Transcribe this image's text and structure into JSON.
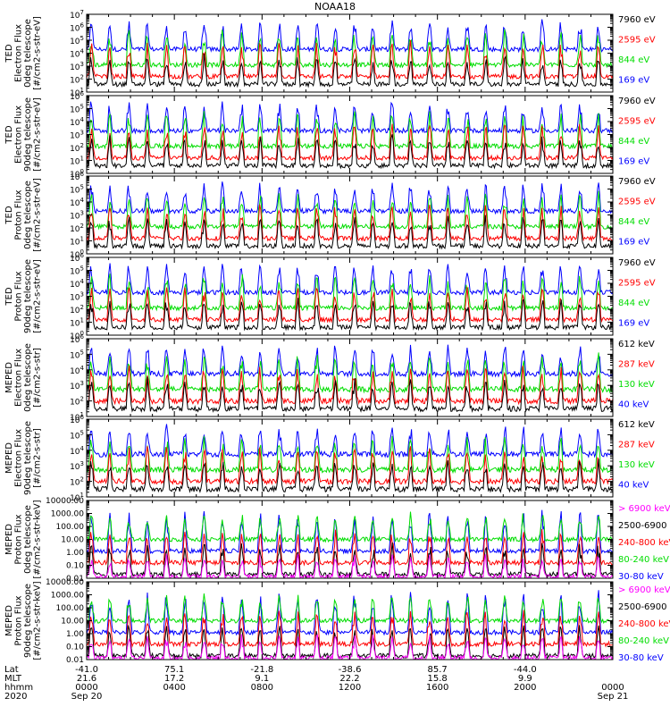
{
  "title": "NOAA18",
  "colors": {
    "black": "#000000",
    "red": "#ff0000",
    "green": "#00dd00",
    "blue": "#0000ff",
    "magenta": "#ff00ff"
  },
  "chart_data": [
    {
      "type": "line",
      "ylabel": [
        "TED",
        "Electron Flux",
        "0deg telescope",
        "[#/cm2-s-str-eV]"
      ],
      "yscale": "log",
      "ylim": [
        10,
        10000000
      ],
      "ytick_labels": [
        "10^1",
        "10^2",
        "10^3",
        "10^4",
        "10^5",
        "10^6",
        "10^7"
      ],
      "legend": [
        {
          "label": "7960 eV",
          "color": "black"
        },
        {
          "label": "2595 eV",
          "color": "red"
        },
        {
          "label": "844 eV",
          "color": "green"
        },
        {
          "label": "169 eV",
          "color": "blue"
        }
      ]
    },
    {
      "type": "line",
      "ylabel": [
        "TED",
        "Electron Flux",
        "90deg telescope",
        "[#/cm2-s-str-eV]"
      ],
      "yscale": "log",
      "ylim": [
        1,
        1000000
      ],
      "ytick_labels": [
        "10^0",
        "10^1",
        "10^2",
        "10^3",
        "10^4",
        "10^5",
        "10^6"
      ],
      "legend": [
        {
          "label": "7960 eV",
          "color": "black"
        },
        {
          "label": "2595 eV",
          "color": "red"
        },
        {
          "label": "844 eV",
          "color": "green"
        },
        {
          "label": "169 eV",
          "color": "blue"
        }
      ]
    },
    {
      "type": "line",
      "ylabel": [
        "TED",
        "Proton Flux",
        "0deg telescope",
        "[#/cm2-s-str-eV]"
      ],
      "yscale": "log",
      "ylim": [
        1,
        1000000
      ],
      "ytick_labels": [
        "10^0",
        "10^1",
        "10^2",
        "10^3",
        "10^4",
        "10^5",
        "10^6"
      ],
      "legend": [
        {
          "label": "7960 eV",
          "color": "black"
        },
        {
          "label": "2595 eV",
          "color": "red"
        },
        {
          "label": "844 eV",
          "color": "green"
        },
        {
          "label": "169 eV",
          "color": "blue"
        }
      ]
    },
    {
      "type": "line",
      "ylabel": [
        "TED",
        "Proton Flux",
        "90deg telescope",
        "[#/cm2-s-str-eV]"
      ],
      "yscale": "log",
      "ylim": [
        1,
        1000000
      ],
      "ytick_labels": [
        "10^0",
        "10^1",
        "10^2",
        "10^3",
        "10^4",
        "10^5",
        "10^6"
      ],
      "legend": [
        {
          "label": "7960 eV",
          "color": "black"
        },
        {
          "label": "2595 eV",
          "color": "red"
        },
        {
          "label": "844 eV",
          "color": "green"
        },
        {
          "label": "169 eV",
          "color": "blue"
        }
      ]
    },
    {
      "type": "line",
      "ylabel": [
        "MEPED",
        "Electron Flux",
        "0deg telescope",
        "[#/cm2-s-str]"
      ],
      "yscale": "log",
      "ylim": [
        10,
        1000000
      ],
      "ytick_labels": [
        "10^1",
        "10^2",
        "10^3",
        "10^4",
        "10^5",
        "10^6"
      ],
      "legend": [
        {
          "label": "612 keV",
          "color": "black"
        },
        {
          "label": "287 keV",
          "color": "red"
        },
        {
          "label": "130 keV",
          "color": "green"
        },
        {
          "label": "40 keV",
          "color": "blue"
        }
      ]
    },
    {
      "type": "line",
      "ylabel": [
        "MEPED",
        "Electron Flux",
        "90deg telescope",
        "[#/cm2-s-str]"
      ],
      "yscale": "log",
      "ylim": [
        10,
        1000000
      ],
      "ytick_labels": [
        "10^1",
        "10^2",
        "10^3",
        "10^4",
        "10^5",
        "10^6"
      ],
      "legend": [
        {
          "label": "612 keV",
          "color": "black"
        },
        {
          "label": "287 keV",
          "color": "red"
        },
        {
          "label": "130 keV",
          "color": "green"
        },
        {
          "label": "40 keV",
          "color": "blue"
        }
      ]
    },
    {
      "type": "line",
      "ylabel": [
        "MEPED",
        "Proton Flux",
        "0deg telescope",
        "[#/cm2-s-str-keV]"
      ],
      "yscale": "log",
      "ylim": [
        0.01,
        10000
      ],
      "ytick_labels": [
        "10000.00",
        "1000.00",
        "100.00",
        "10.00",
        "1.00",
        "0.10",
        "0.01"
      ],
      "legend": [
        {
          "label": "> 6900 keV",
          "color": "magenta"
        },
        {
          "label": "2500-6900",
          "color": "black"
        },
        {
          "label": "240-800 keV",
          "color": "red"
        },
        {
          "label": "80-240 keV",
          "color": "green"
        },
        {
          "label": "30-80 keV",
          "color": "blue"
        }
      ]
    },
    {
      "type": "line",
      "ylabel": [
        "MEPED",
        "Proton Flux",
        "90deg telescope",
        "[#/cm2-s-str-keV]"
      ],
      "yscale": "log",
      "ylim": [
        0.01,
        10000
      ],
      "ytick_labels": [
        "10000.00",
        "1000.00",
        "100.00",
        "10.00",
        "1.00",
        "0.10",
        "0.01"
      ],
      "legend": [
        {
          "label": "> 6900 keV",
          "color": "magenta"
        },
        {
          "label": "2500-6900",
          "color": "black"
        },
        {
          "label": "240-800 keV",
          "color": "red"
        },
        {
          "label": "80-240 keV",
          "color": "green"
        },
        {
          "label": "30-80 keV",
          "color": "blue"
        }
      ]
    }
  ],
  "x_axis": {
    "row_labels": [
      "Lat",
      "MLT",
      "hhmm",
      "2020"
    ],
    "ticks": [
      {
        "lat": "-41.0",
        "mlt": "21.6",
        "hhmm": "0000",
        "date": "Sep 20"
      },
      {
        "lat": "75.1",
        "mlt": "17.2",
        "hhmm": "0400",
        "date": ""
      },
      {
        "lat": "-21.8",
        "mlt": "9.1",
        "hhmm": "0800",
        "date": ""
      },
      {
        "lat": "-38.6",
        "mlt": "22.2",
        "hhmm": "1200",
        "date": ""
      },
      {
        "lat": "85.7",
        "mlt": "15.8",
        "hhmm": "1600",
        "date": ""
      },
      {
        "lat": "-44.0",
        "mlt": "9.9",
        "hhmm": "2000",
        "date": ""
      },
      {
        "lat": "",
        "mlt": "",
        "hhmm": "0000",
        "date": "Sep 21"
      }
    ]
  }
}
